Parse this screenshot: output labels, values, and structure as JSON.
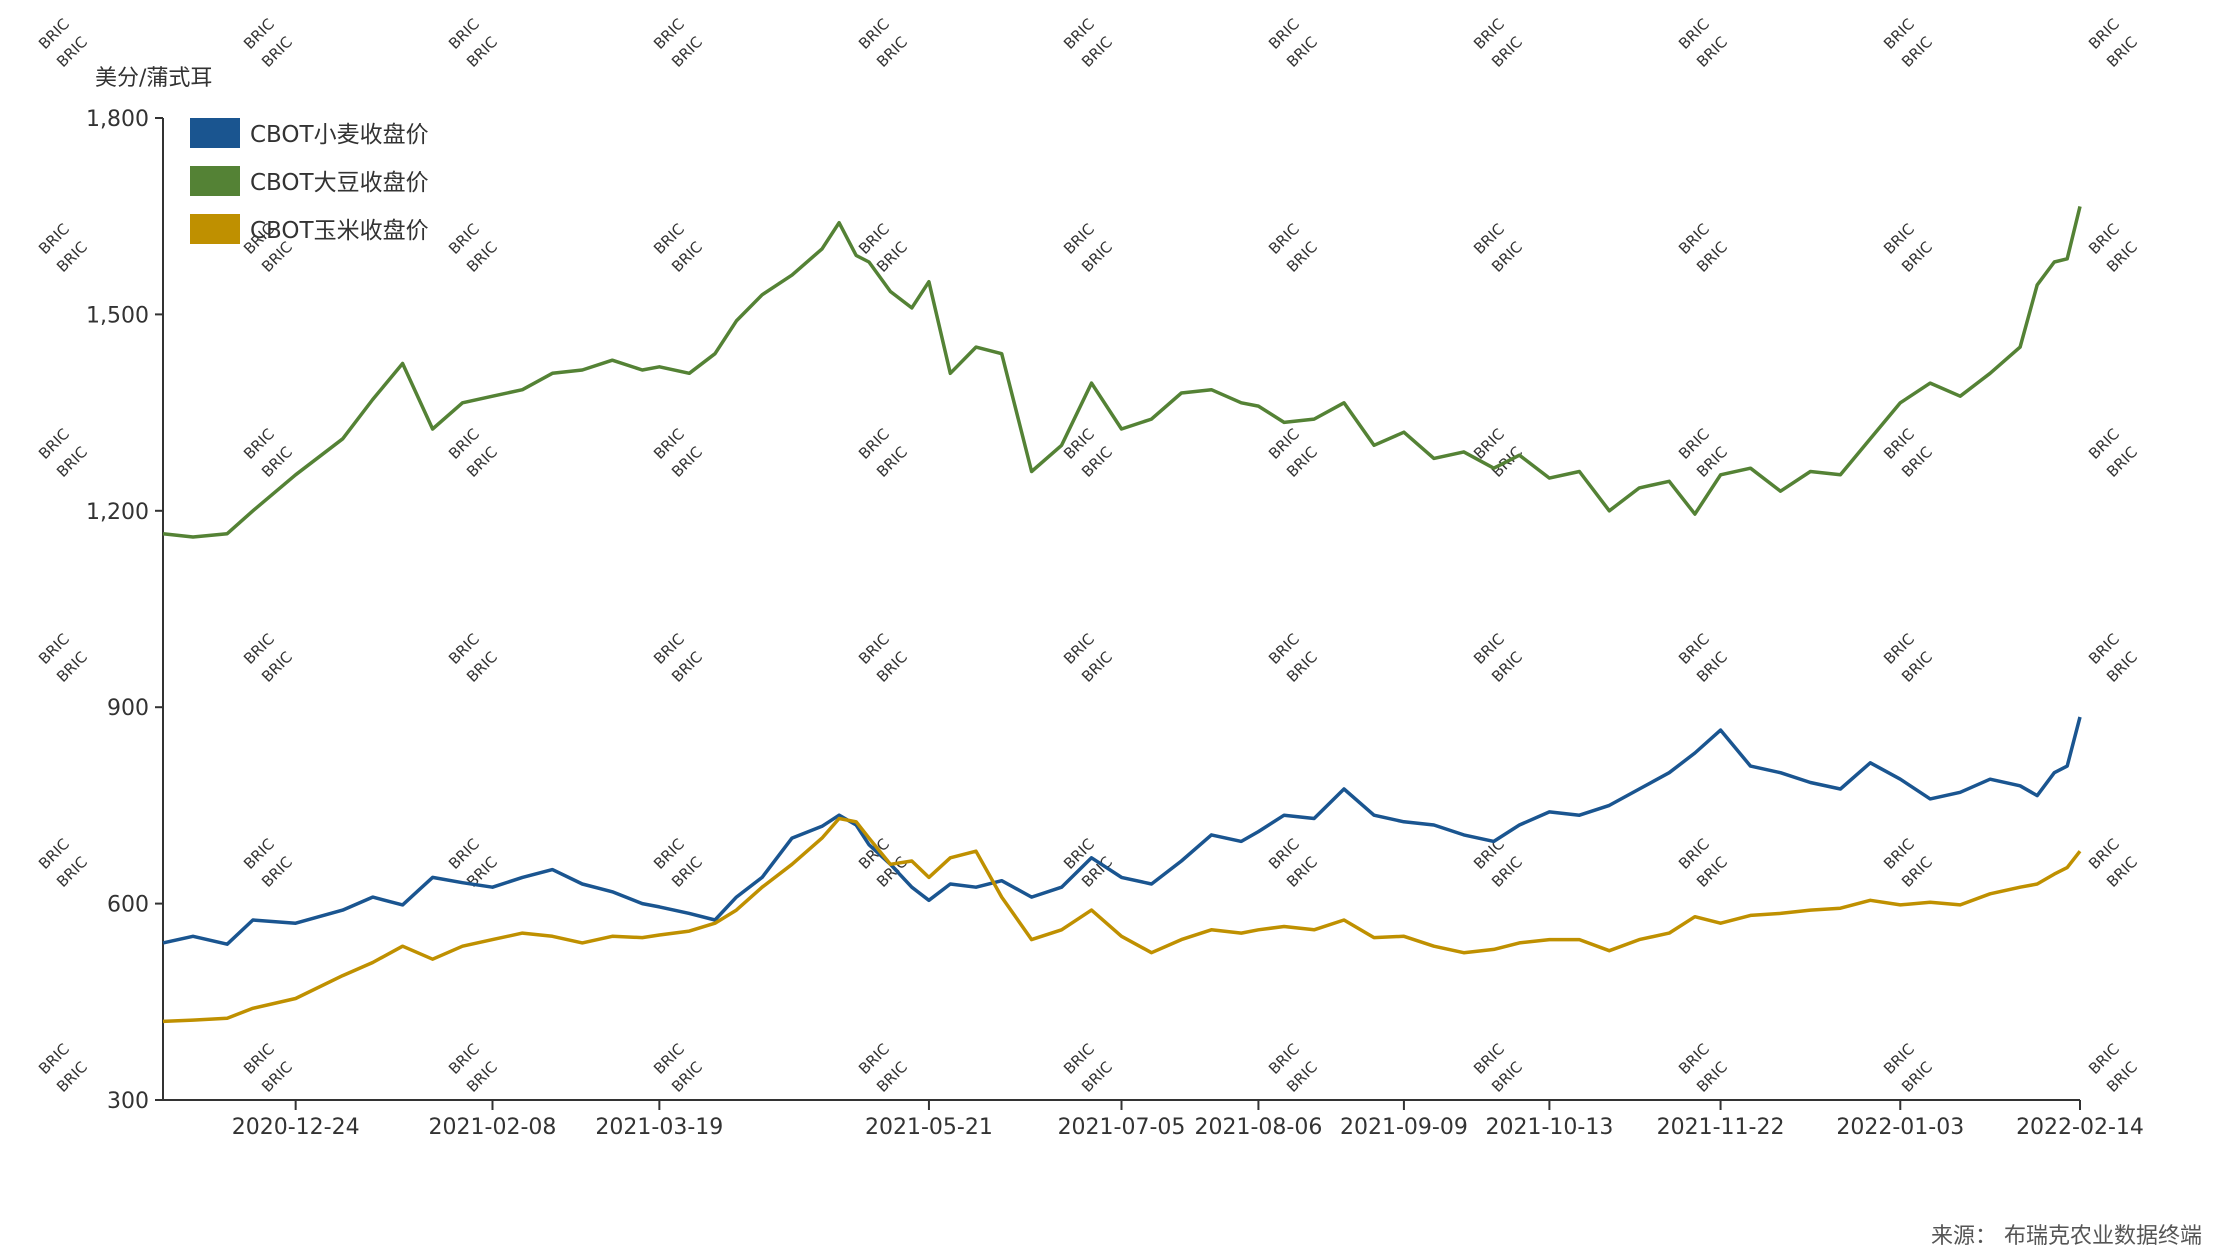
{
  "chart_data": {
    "type": "line",
    "ylabel": "美分/蒲式耳",
    "ylim": [
      300,
      1800
    ],
    "yticks": [
      300,
      600,
      900,
      1200,
      1500,
      1800
    ],
    "ytick_labels": [
      "300",
      "600",
      "900",
      "1,200",
      "1,500",
      "1,800"
    ],
    "xlim": [
      "2020-11-23",
      "2022-02-14"
    ],
    "xticks": [
      "2020-12-24",
      "2021-02-08",
      "2021-03-19",
      "2021-05-21",
      "2021-07-05",
      "2021-08-06",
      "2021-09-09",
      "2021-10-13",
      "2021-11-22",
      "2022-01-03",
      "2022-02-14"
    ],
    "legend_position": "top-left",
    "grid": false,
    "series": [
      {
        "name": "CBOT小麦收盘价",
        "color": "#1a5590",
        "points": [
          [
            "2020-11-23",
            540
          ],
          [
            "2020-11-30",
            550
          ],
          [
            "2020-12-08",
            538
          ],
          [
            "2020-12-14",
            575
          ],
          [
            "2020-12-24",
            570
          ],
          [
            "2021-01-04",
            590
          ],
          [
            "2021-01-11",
            610
          ],
          [
            "2021-01-18",
            598
          ],
          [
            "2021-01-25",
            640
          ],
          [
            "2021-02-01",
            632
          ],
          [
            "2021-02-08",
            625
          ],
          [
            "2021-02-15",
            640
          ],
          [
            "2021-02-22",
            652
          ],
          [
            "2021-03-01",
            630
          ],
          [
            "2021-03-08",
            618
          ],
          [
            "2021-03-15",
            600
          ],
          [
            "2021-03-19",
            595
          ],
          [
            "2021-03-26",
            585
          ],
          [
            "2021-04-01",
            575
          ],
          [
            "2021-04-06",
            610
          ],
          [
            "2021-04-12",
            640
          ],
          [
            "2021-04-19",
            700
          ],
          [
            "2021-04-26",
            718
          ],
          [
            "2021-04-30",
            735
          ],
          [
            "2021-05-04",
            720
          ],
          [
            "2021-05-07",
            690
          ],
          [
            "2021-05-12",
            660
          ],
          [
            "2021-05-17",
            625
          ],
          [
            "2021-05-21",
            605
          ],
          [
            "2021-05-26",
            630
          ],
          [
            "2021-06-01",
            625
          ],
          [
            "2021-06-07",
            635
          ],
          [
            "2021-06-14",
            610
          ],
          [
            "2021-06-21",
            625
          ],
          [
            "2021-06-28",
            670
          ],
          [
            "2021-07-05",
            640
          ],
          [
            "2021-07-12",
            630
          ],
          [
            "2021-07-19",
            665
          ],
          [
            "2021-07-26",
            705
          ],
          [
            "2021-08-02",
            695
          ],
          [
            "2021-08-06",
            710
          ],
          [
            "2021-08-12",
            735
          ],
          [
            "2021-08-19",
            730
          ],
          [
            "2021-08-26",
            775
          ],
          [
            "2021-09-02",
            735
          ],
          [
            "2021-09-09",
            725
          ],
          [
            "2021-09-16",
            720
          ],
          [
            "2021-09-23",
            705
          ],
          [
            "2021-09-30",
            695
          ],
          [
            "2021-10-06",
            720
          ],
          [
            "2021-10-13",
            740
          ],
          [
            "2021-10-20",
            735
          ],
          [
            "2021-10-27",
            750
          ],
          [
            "2021-11-03",
            775
          ],
          [
            "2021-11-10",
            800
          ],
          [
            "2021-11-16",
            830
          ],
          [
            "2021-11-22",
            865
          ],
          [
            "2021-11-29",
            810
          ],
          [
            "2021-12-06",
            800
          ],
          [
            "2021-12-13",
            785
          ],
          [
            "2021-12-20",
            775
          ],
          [
            "2021-12-27",
            815
          ],
          [
            "2022-01-03",
            790
          ],
          [
            "2022-01-10",
            760
          ],
          [
            "2022-01-17",
            770
          ],
          [
            "2022-01-24",
            790
          ],
          [
            "2022-01-31",
            780
          ],
          [
            "2022-02-04",
            765
          ],
          [
            "2022-02-08",
            800
          ],
          [
            "2022-02-11",
            810
          ],
          [
            "2022-02-14",
            885
          ]
        ]
      },
      {
        "name": "CBOT大豆收盘价",
        "color": "#548235",
        "points": [
          [
            "2020-11-23",
            1165
          ],
          [
            "2020-11-30",
            1160
          ],
          [
            "2020-12-08",
            1165
          ],
          [
            "2020-12-14",
            1200
          ],
          [
            "2020-12-24",
            1255
          ],
          [
            "2021-01-04",
            1310
          ],
          [
            "2021-01-11",
            1370
          ],
          [
            "2021-01-18",
            1425
          ],
          [
            "2021-01-25",
            1325
          ],
          [
            "2021-02-01",
            1365
          ],
          [
            "2021-02-08",
            1375
          ],
          [
            "2021-02-15",
            1385
          ],
          [
            "2021-02-22",
            1410
          ],
          [
            "2021-03-01",
            1415
          ],
          [
            "2021-03-08",
            1430
          ],
          [
            "2021-03-15",
            1415
          ],
          [
            "2021-03-19",
            1420
          ],
          [
            "2021-03-26",
            1410
          ],
          [
            "2021-04-01",
            1440
          ],
          [
            "2021-04-06",
            1490
          ],
          [
            "2021-04-12",
            1530
          ],
          [
            "2021-04-19",
            1560
          ],
          [
            "2021-04-26",
            1600
          ],
          [
            "2021-04-30",
            1640
          ],
          [
            "2021-05-04",
            1590
          ],
          [
            "2021-05-07",
            1580
          ],
          [
            "2021-05-12",
            1535
          ],
          [
            "2021-05-17",
            1510
          ],
          [
            "2021-05-21",
            1550
          ],
          [
            "2021-05-26",
            1410
          ],
          [
            "2021-06-01",
            1450
          ],
          [
            "2021-06-07",
            1440
          ],
          [
            "2021-06-14",
            1260
          ],
          [
            "2021-06-21",
            1300
          ],
          [
            "2021-06-28",
            1395
          ],
          [
            "2021-07-05",
            1325
          ],
          [
            "2021-07-12",
            1340
          ],
          [
            "2021-07-19",
            1380
          ],
          [
            "2021-07-26",
            1385
          ],
          [
            "2021-08-02",
            1365
          ],
          [
            "2021-08-06",
            1360
          ],
          [
            "2021-08-12",
            1335
          ],
          [
            "2021-08-19",
            1340
          ],
          [
            "2021-08-26",
            1365
          ],
          [
            "2021-09-02",
            1300
          ],
          [
            "2021-09-09",
            1320
          ],
          [
            "2021-09-16",
            1280
          ],
          [
            "2021-09-23",
            1290
          ],
          [
            "2021-09-30",
            1265
          ],
          [
            "2021-10-06",
            1285
          ],
          [
            "2021-10-13",
            1250
          ],
          [
            "2021-10-20",
            1260
          ],
          [
            "2021-10-27",
            1200
          ],
          [
            "2021-11-03",
            1235
          ],
          [
            "2021-11-10",
            1245
          ],
          [
            "2021-11-16",
            1195
          ],
          [
            "2021-11-22",
            1255
          ],
          [
            "2021-11-29",
            1265
          ],
          [
            "2021-12-06",
            1230
          ],
          [
            "2021-12-13",
            1260
          ],
          [
            "2021-12-20",
            1255
          ],
          [
            "2021-12-27",
            1310
          ],
          [
            "2022-01-03",
            1365
          ],
          [
            "2022-01-10",
            1395
          ],
          [
            "2022-01-17",
            1375
          ],
          [
            "2022-01-24",
            1410
          ],
          [
            "2022-01-31",
            1450
          ],
          [
            "2022-02-04",
            1545
          ],
          [
            "2022-02-08",
            1580
          ],
          [
            "2022-02-11",
            1585
          ],
          [
            "2022-02-14",
            1665
          ]
        ]
      },
      {
        "name": "CBOT玉米收盘价",
        "color": "#bf9000",
        "points": [
          [
            "2020-11-23",
            420
          ],
          [
            "2020-11-30",
            422
          ],
          [
            "2020-12-08",
            425
          ],
          [
            "2020-12-14",
            440
          ],
          [
            "2020-12-24",
            455
          ],
          [
            "2021-01-04",
            490
          ],
          [
            "2021-01-11",
            510
          ],
          [
            "2021-01-18",
            535
          ],
          [
            "2021-01-25",
            515
          ],
          [
            "2021-02-01",
            535
          ],
          [
            "2021-02-08",
            545
          ],
          [
            "2021-02-15",
            555
          ],
          [
            "2021-02-22",
            550
          ],
          [
            "2021-03-01",
            540
          ],
          [
            "2021-03-08",
            550
          ],
          [
            "2021-03-15",
            548
          ],
          [
            "2021-03-19",
            552
          ],
          [
            "2021-03-26",
            558
          ],
          [
            "2021-04-01",
            570
          ],
          [
            "2021-04-06",
            590
          ],
          [
            "2021-04-12",
            625
          ],
          [
            "2021-04-19",
            660
          ],
          [
            "2021-04-26",
            700
          ],
          [
            "2021-04-30",
            730
          ],
          [
            "2021-05-04",
            725
          ],
          [
            "2021-05-07",
            700
          ],
          [
            "2021-05-12",
            660
          ],
          [
            "2021-05-17",
            665
          ],
          [
            "2021-05-21",
            640
          ],
          [
            "2021-05-26",
            670
          ],
          [
            "2021-06-01",
            680
          ],
          [
            "2021-06-07",
            610
          ],
          [
            "2021-06-14",
            545
          ],
          [
            "2021-06-21",
            560
          ],
          [
            "2021-06-28",
            590
          ],
          [
            "2021-07-05",
            550
          ],
          [
            "2021-07-12",
            525
          ],
          [
            "2021-07-19",
            545
          ],
          [
            "2021-07-26",
            560
          ],
          [
            "2021-08-02",
            555
          ],
          [
            "2021-08-06",
            560
          ],
          [
            "2021-08-12",
            565
          ],
          [
            "2021-08-19",
            560
          ],
          [
            "2021-08-26",
            575
          ],
          [
            "2021-09-02",
            548
          ],
          [
            "2021-09-09",
            550
          ],
          [
            "2021-09-16",
            535
          ],
          [
            "2021-09-23",
            525
          ],
          [
            "2021-09-30",
            530
          ],
          [
            "2021-10-06",
            540
          ],
          [
            "2021-10-13",
            545
          ],
          [
            "2021-10-20",
            545
          ],
          [
            "2021-10-27",
            528
          ],
          [
            "2021-11-03",
            545
          ],
          [
            "2021-11-10",
            555
          ],
          [
            "2021-11-16",
            580
          ],
          [
            "2021-11-22",
            570
          ],
          [
            "2021-11-29",
            582
          ],
          [
            "2021-12-06",
            585
          ],
          [
            "2021-12-13",
            590
          ],
          [
            "2021-12-20",
            593
          ],
          [
            "2021-12-27",
            605
          ],
          [
            "2022-01-03",
            598
          ],
          [
            "2022-01-10",
            602
          ],
          [
            "2022-01-17",
            598
          ],
          [
            "2022-01-24",
            615
          ],
          [
            "2022-01-31",
            625
          ],
          [
            "2022-02-04",
            630
          ],
          [
            "2022-02-08",
            645
          ],
          [
            "2022-02-11",
            655
          ],
          [
            "2022-02-14",
            680
          ]
        ]
      }
    ]
  },
  "watermark_text": "BRIC",
  "source": "来源：  布瑞克农业数据终端"
}
